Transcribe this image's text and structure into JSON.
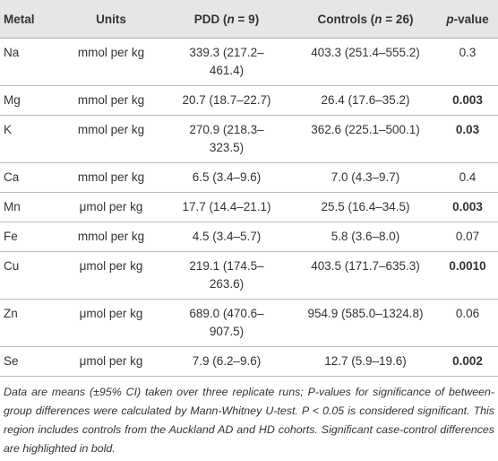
{
  "table": {
    "header": [
      [
        {
          "text": "Metal"
        }
      ],
      [
        {
          "text": "Units"
        }
      ],
      [
        {
          "text": "PDD ("
        },
        {
          "text": "n",
          "italic": true
        },
        {
          "text": " = 9)"
        }
      ],
      [
        {
          "text": "Controls ("
        },
        {
          "text": "n",
          "italic": true
        },
        {
          "text": " = 26)"
        }
      ],
      [
        {
          "text": "p",
          "italic": true
        },
        {
          "text": "-value"
        }
      ]
    ],
    "rows": [
      {
        "metal": "Na",
        "units": "mmol per kg",
        "pdd": "339.3 (217.2–461.4)",
        "controls": "403.3 (251.4–555.2)",
        "p": "0.3",
        "significant": false
      },
      {
        "metal": "Mg",
        "units": "mmol per kg",
        "pdd": "20.7 (18.7–22.7)",
        "controls": "26.4 (17.6–35.2)",
        "p": "0.003",
        "significant": true
      },
      {
        "metal": "K",
        "units": "mmol per kg",
        "pdd": "270.9 (218.3–323.5)",
        "controls": "362.6 (225.1–500.1)",
        "p": "0.03",
        "significant": true
      },
      {
        "metal": "Ca",
        "units": "mmol per kg",
        "pdd": "6.5 (3.4–9.6)",
        "controls": "7.0 (4.3–9.7)",
        "p": "0.4",
        "significant": false
      },
      {
        "metal": "Mn",
        "units": "μmol per kg",
        "pdd": "17.7 (14.4–21.1)",
        "controls": "25.5 (16.4–34.5)",
        "p": "0.003",
        "significant": true
      },
      {
        "metal": "Fe",
        "units": "mmol per kg",
        "pdd": "4.5 (3.4–5.7)",
        "controls": "5.8 (3.6–8.0)",
        "p": "0.07",
        "significant": false
      },
      {
        "metal": "Cu",
        "units": "μmol per kg",
        "pdd": "219.1 (174.5–263.6)",
        "controls": "403.5 (171.7–635.3)",
        "p": "0.0010",
        "significant": true
      },
      {
        "metal": "Zn",
        "units": "μmol per kg",
        "pdd": "689.0 (470.6–907.5)",
        "controls": "954.9 (585.0–1324.8)",
        "p": "0.06",
        "significant": false
      },
      {
        "metal": "Se",
        "units": "μmol per kg",
        "pdd": "7.9 (6.2–9.6)",
        "controls": "12.7 (5.9–19.6)",
        "p": "0.002",
        "significant": true
      }
    ],
    "footnote": "Data are means (±95% CI) taken over three replicate runs; P-values for significance of between-group differences were calculated by Mann-Whitney U-test. P < 0.05 is considered significant. This region includes controls from the Auckland AD and HD cohorts. Significant case-control differences are highlighted in bold."
  }
}
